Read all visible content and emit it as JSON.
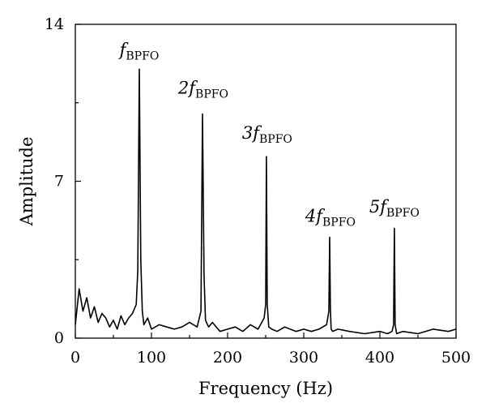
{
  "chart_data": {
    "type": "line",
    "xlabel": "Frequency (Hz)",
    "ylabel": "Amplitude",
    "xlim": [
      0,
      500
    ],
    "ylim": [
      0,
      14
    ],
    "x_ticks": [
      0,
      100,
      200,
      300,
      400,
      500
    ],
    "y_ticks": [
      0,
      7,
      14
    ],
    "grid": false,
    "series": [
      {
        "x": [
          0,
          5,
          10,
          15,
          20,
          25,
          30,
          35,
          40,
          45,
          50,
          55,
          60,
          65,
          70,
          75,
          80,
          82,
          84,
          86,
          88,
          90,
          95,
          100,
          110,
          120,
          130,
          140,
          150,
          160,
          165,
          167,
          169,
          171,
          175,
          180,
          190,
          200,
          210,
          220,
          230,
          240,
          248,
          250,
          251,
          252,
          254,
          258,
          265,
          275,
          290,
          300,
          310,
          320,
          330,
          333,
          334,
          335,
          336,
          338,
          345,
          360,
          380,
          400,
          410,
          416,
          418,
          419,
          420,
          422,
          430,
          450,
          470,
          490,
          500
        ],
        "y": [
          0.6,
          2.2,
          1.2,
          1.8,
          0.9,
          1.4,
          0.7,
          1.1,
          0.9,
          0.5,
          0.8,
          0.4,
          1.0,
          0.6,
          0.9,
          1.1,
          1.5,
          3.0,
          12.0,
          3.5,
          1.2,
          0.6,
          0.9,
          0.4,
          0.6,
          0.5,
          0.4,
          0.5,
          0.7,
          0.5,
          1.2,
          10.0,
          2.8,
          0.8,
          0.5,
          0.7,
          0.3,
          0.4,
          0.5,
          0.3,
          0.6,
          0.4,
          0.9,
          1.5,
          8.1,
          1.5,
          0.5,
          0.4,
          0.3,
          0.5,
          0.3,
          0.4,
          0.3,
          0.4,
          0.6,
          1.2,
          4.5,
          1.3,
          0.4,
          0.3,
          0.4,
          0.3,
          0.2,
          0.3,
          0.2,
          0.3,
          0.6,
          4.9,
          0.6,
          0.2,
          0.3,
          0.2,
          0.4,
          0.3,
          0.4
        ]
      }
    ],
    "annotations": [
      {
        "main": "f",
        "sub": "BPFO",
        "x": 84,
        "y": 12.6
      },
      {
        "main": "2f",
        "sub": "BPFO",
        "x": 168,
        "y": 10.9
      },
      {
        "main": "3f",
        "sub": "BPFO",
        "x": 252,
        "y": 8.9
      },
      {
        "main": "4f",
        "sub": "BPFO",
        "x": 335,
        "y": 5.2
      },
      {
        "main": "5f",
        "sub": "BPFO",
        "x": 419,
        "y": 5.6
      }
    ]
  }
}
